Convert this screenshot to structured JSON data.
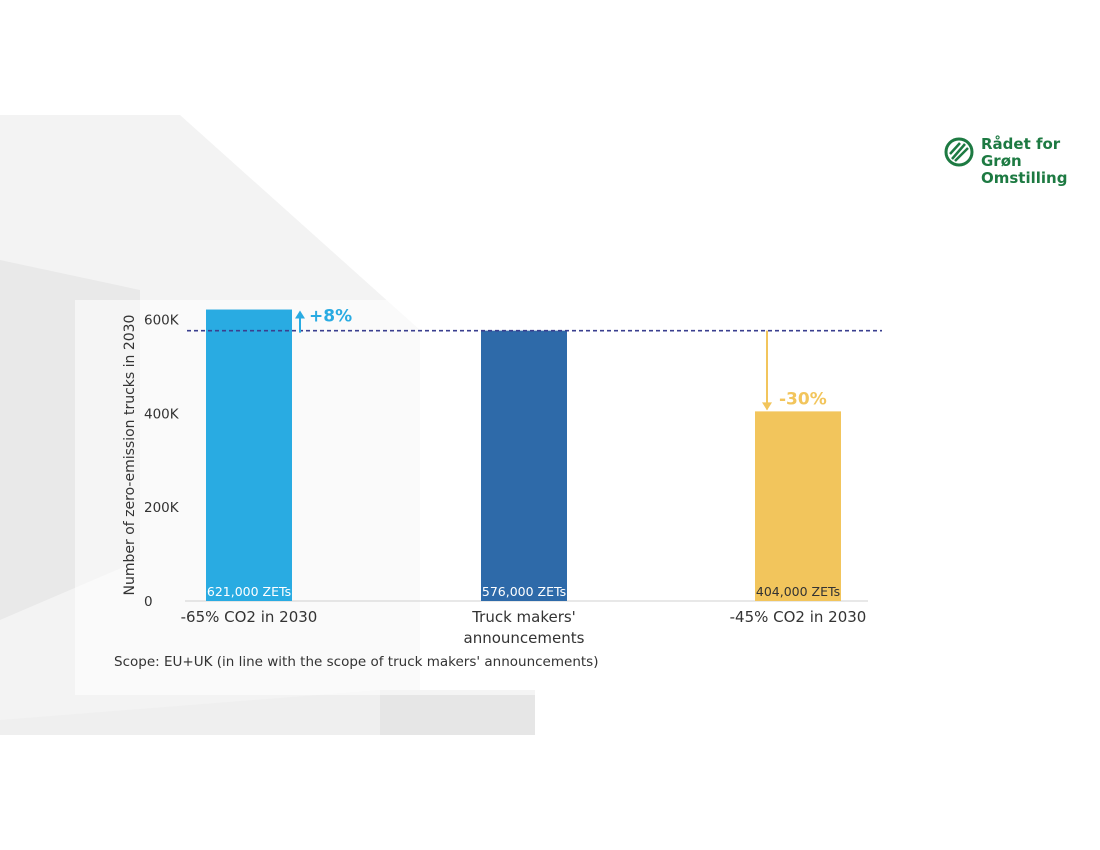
{
  "logo": {
    "lines": [
      "Rådet for",
      "Grøn",
      "Omstilling"
    ],
    "color": "#1d7a42"
  },
  "scope_note": "Scope: EU+UK (in line with the scope of truck makers' announcements)",
  "chart_data": {
    "type": "bar",
    "ylabel": "Number of zero-emission trucks in 2030",
    "ylim": [
      0,
      620000
    ],
    "yticks": [
      0,
      200000,
      400000,
      600000
    ],
    "ytick_labels": [
      "0",
      "200K",
      "400K",
      "600K"
    ],
    "grid": false,
    "categories": [
      [
        "-65% CO2 in 2030"
      ],
      [
        "Truck makers'",
        "announcements"
      ],
      [
        "-45% CO2 in 2030"
      ]
    ],
    "values": [
      621000,
      576000,
      404000
    ],
    "data_labels": [
      "621,000 ZETs",
      "576,000 ZETs",
      "404,000 ZETs"
    ],
    "colors": [
      "#29abe2",
      "#2e6aa9",
      "#f2c55c"
    ],
    "label_colors": [
      "#ffffff",
      "#ffffff",
      "#333333"
    ],
    "reference_line": {
      "value": 576000,
      "style": "dashed",
      "color": "#3a3f8f"
    },
    "annotations": [
      {
        "text": "+8%",
        "bar": 0,
        "color": "#29abe2"
      },
      {
        "text": "-30%",
        "bar": 2,
        "color": "#f2c55c"
      }
    ]
  }
}
